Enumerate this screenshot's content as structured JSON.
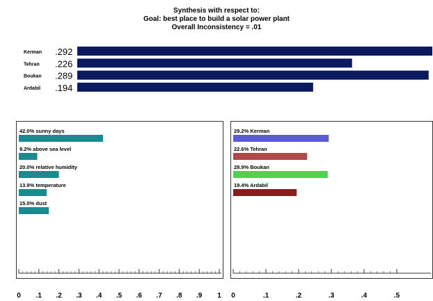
{
  "header": {
    "line1": "Synthesis with respect to:",
    "line2": "Goal: best place to build a solar power plant",
    "line3": "Overall Inconsistency = .01"
  },
  "chart_data": [
    {
      "type": "bar",
      "orientation": "horizontal",
      "title": "",
      "categories": [
        "Kerman",
        "Tehran",
        "Boukan",
        "Ardabil"
      ],
      "values": [
        0.292,
        0.226,
        0.289,
        0.194
      ],
      "value_labels": [
        ".292",
        ".226",
        ".289",
        ".194"
      ],
      "xlim": [
        0,
        0.292
      ],
      "color": "#0b1a5e"
    },
    {
      "type": "bar",
      "orientation": "horizontal",
      "categories": [
        "sunny days",
        "above sea level",
        "relative humidity",
        "temperature",
        "dust"
      ],
      "labels": [
        "42.0% sunny days",
        "9.2% above sea level",
        "20.0% relative humidity",
        "13.9% temperature",
        "15.0% dust"
      ],
      "values": [
        0.42,
        0.092,
        0.2,
        0.139,
        0.15
      ],
      "xlim": [
        0,
        1
      ],
      "ticks": [
        "0",
        ".1",
        ".2",
        ".3",
        ".4",
        ".5",
        ".6",
        ".7",
        ".8",
        ".9",
        "1"
      ],
      "grid": false,
      "color": "#1a8a8e"
    },
    {
      "type": "bar",
      "orientation": "horizontal",
      "categories": [
        "Kerman",
        "Tehran",
        "Boukan",
        "Ardabil"
      ],
      "labels": [
        "29.2% Kerman",
        "22.6% Tehran",
        "28.9% Boukan",
        "19.4% Ardabil"
      ],
      "values": [
        0.292,
        0.226,
        0.289,
        0.194
      ],
      "colors": [
        "#5b5bd6",
        "#b04a4a",
        "#4fd24f",
        "#8b1c1c"
      ],
      "xlim": [
        0,
        0.6
      ],
      "ticks": [
        "0",
        ".1",
        ".2",
        ".3",
        ".4",
        ".5"
      ],
      "grid": false
    }
  ]
}
